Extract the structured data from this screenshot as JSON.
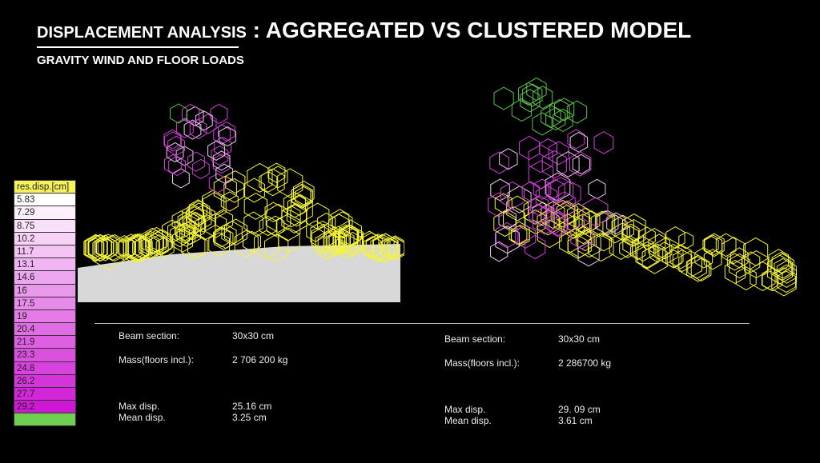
{
  "title": {
    "prefix": "DISPLACEMENT ANALYSIS",
    "main": " : AGGREGATED VS CLUSTERED MODEL"
  },
  "subtitle": "GRAVITY WIND AND FLOOR LOADS",
  "legend": {
    "header": "res.disp.[cm]",
    "values": [
      "5.83",
      "7.29",
      "8.75",
      "10.2",
      "11.7",
      "13.1",
      "14.6",
      "16",
      "17.5",
      "19",
      "20.4",
      "21.9",
      "23.3",
      "24.8",
      "26.2",
      "27.7",
      "29.2",
      ""
    ],
    "colors": [
      "#ffffff",
      "#fdf0fd",
      "#f9e0fa",
      "#f6d2f7",
      "#f3c3f4",
      "#f0b5f2",
      "#eca6ef",
      "#ea98ec",
      "#e78ae9",
      "#e47be6",
      "#e16de4",
      "#de5fe2",
      "#db50df",
      "#d842dd",
      "#d534da",
      "#d226d8",
      "#cf18d5",
      "#6fcf4f"
    ]
  },
  "models": [
    {
      "stats": {
        "beam_label": "Beam section:",
        "beam_value": "30x30 cm",
        "mass_label": "Mass(floors incl.):",
        "mass_value": "2 706 200 kg",
        "max_label": "Max disp.",
        "max_value": "25.16 cm",
        "mean_label": "Mean disp.",
        "mean_value": "3.25 cm"
      }
    },
    {
      "stats": {
        "beam_label": "Beam section:",
        "beam_value": "30x30 cm",
        "mass_label": "Mass(floors incl.):",
        "mass_value": "2 286700 kg",
        "max_label": "Max disp.",
        "max_value": "29. 09 cm",
        "mean_label": "Mean disp.",
        "mean_value": "3.61 cm"
      }
    }
  ],
  "colors": {
    "yellow": "#f5f53a",
    "magenta": "#d040d8",
    "green": "#5dc24a",
    "ground": "#d8d8d8"
  }
}
